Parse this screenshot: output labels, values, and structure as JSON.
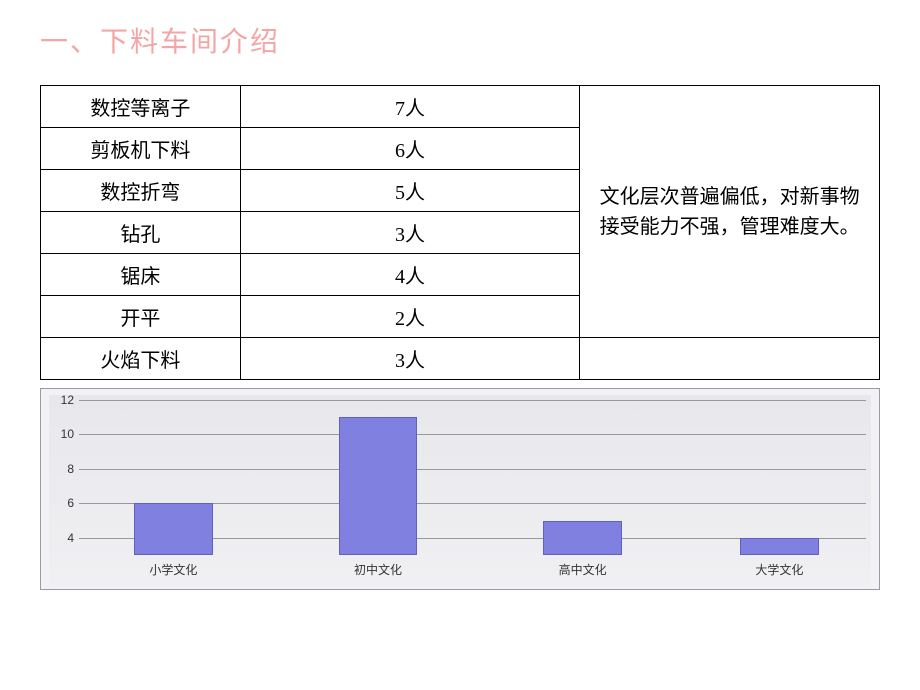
{
  "title": "一、下料车间介绍",
  "table": {
    "rows": [
      {
        "label": "数控等离子",
        "value": "7人"
      },
      {
        "label": "剪板机下料",
        "value": "6人"
      },
      {
        "label": "数控折弯",
        "value": "5人"
      },
      {
        "label": "钻孔",
        "value": "3人"
      },
      {
        "label": "锯床",
        "value": "4人"
      },
      {
        "label": "开平",
        "value": "2人"
      },
      {
        "label": "火焰下料",
        "value": "3人"
      }
    ],
    "summary": "文化层次普遍偏低，对新事物接受能力不强，管理难度大。"
  },
  "chart": {
    "type": "bar",
    "categories": [
      "小学文化",
      "初中文化",
      "高中文化",
      "大学文化"
    ],
    "values": [
      6,
      11,
      5,
      4
    ],
    "bar_color": "#8080e0",
    "bar_border": "#6060c0",
    "background": "#e8e8ec",
    "grid_color": "#999999",
    "y_min": 3,
    "y_max": 12,
    "y_ticks": [
      4,
      6,
      8,
      10,
      12
    ],
    "bar_width_pct": 10,
    "bar_positions_pct": [
      12,
      38,
      64,
      89
    ]
  }
}
